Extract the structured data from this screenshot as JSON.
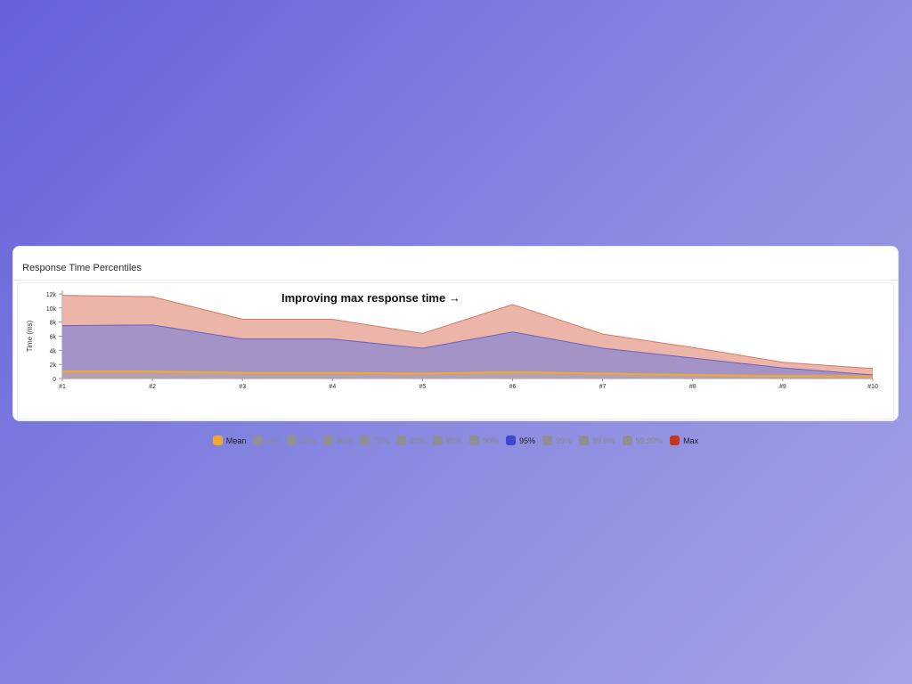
{
  "card": {
    "title": "Response Time Percentiles"
  },
  "annotation": "Improving max response time →",
  "colors": {
    "max_fill": "#e8a89a",
    "max_line": "#d9785f",
    "p95_fill": "#9b8fc9",
    "p95_line": "#6b5fc4",
    "mean_line": "#f0a92e"
  },
  "chart_data": {
    "type": "area",
    "title": "Response Time Percentiles",
    "xlabel": "",
    "ylabel": "Time (ms)",
    "categories": [
      "#1",
      "#2",
      "#3",
      "#4",
      "#5",
      "#6",
      "#7",
      "#8",
      "#9",
      "#10"
    ],
    "ylim": [
      0,
      12000
    ],
    "yticks": [
      0,
      2000,
      4000,
      6000,
      8000,
      10000,
      12000
    ],
    "ytick_labels": [
      "0",
      "2k",
      "4k",
      "6k",
      "8k",
      "10k",
      "12k"
    ],
    "series": [
      {
        "name": "Max",
        "values": [
          11800,
          11600,
          8400,
          8400,
          6400,
          10500,
          6300,
          4400,
          2300,
          1400
        ]
      },
      {
        "name": "95%",
        "values": [
          7500,
          7600,
          5600,
          5600,
          4300,
          6600,
          4300,
          2900,
          1500,
          500
        ]
      },
      {
        "name": "Mean",
        "values": [
          1000,
          1000,
          800,
          800,
          700,
          900,
          700,
          500,
          350,
          300
        ]
      }
    ],
    "legend_position": "bottom",
    "legend": [
      {
        "name": "Mean",
        "color": "#f0a92e",
        "active": true
      },
      {
        "name": "Min",
        "color": "#8f8f94",
        "active": false
      },
      {
        "name": "25%",
        "color": "#8f8f94",
        "active": false
      },
      {
        "name": "50%",
        "color": "#8f8f94",
        "active": false
      },
      {
        "name": "75%",
        "color": "#8f8f94",
        "active": false
      },
      {
        "name": "80%",
        "color": "#8f8f94",
        "active": false
      },
      {
        "name": "85%",
        "color": "#8f8f94",
        "active": false
      },
      {
        "name": "90%",
        "color": "#8f8f94",
        "active": false
      },
      {
        "name": "95%",
        "color": "#3a47cf",
        "active": true
      },
      {
        "name": "99%",
        "color": "#8f8f94",
        "active": false
      },
      {
        "name": "99.9%",
        "color": "#8f8f94",
        "active": false
      },
      {
        "name": "99.99%",
        "color": "#8f8f94",
        "active": false
      },
      {
        "name": "Max",
        "color": "#c8361d",
        "active": true
      }
    ]
  }
}
